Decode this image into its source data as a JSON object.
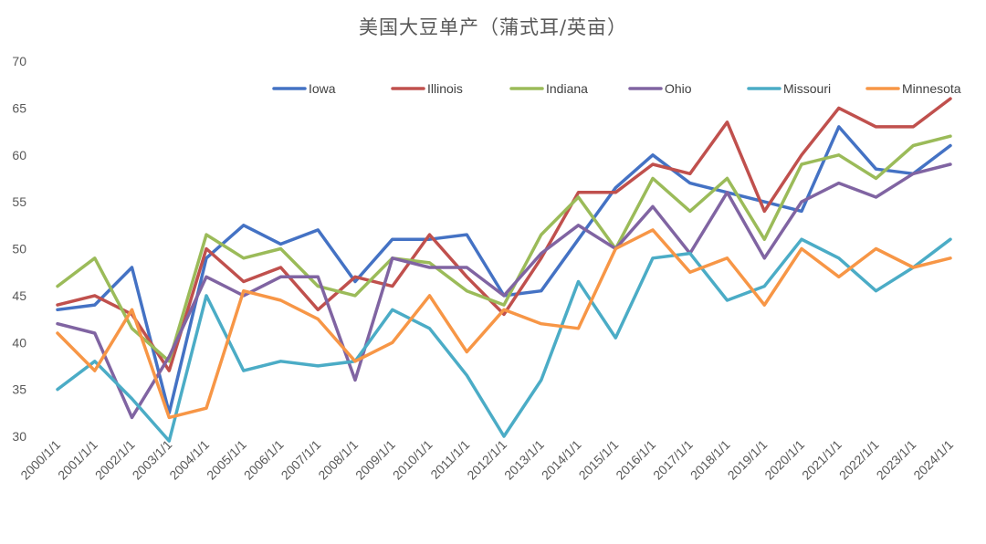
{
  "chart_data": {
    "type": "line",
    "title": "美国大豆单产（蒲式耳/英亩）",
    "xlabel": "",
    "ylabel": "",
    "ylim": [
      30,
      70
    ],
    "yticks": [
      30,
      35,
      40,
      45,
      50,
      55,
      60,
      65,
      70
    ],
    "grid": false,
    "legend_position": "top",
    "categories": [
      "2000/1/1",
      "2001/1/1",
      "2002/1/1",
      "2003/1/1",
      "2004/1/1",
      "2005/1/1",
      "2006/1/1",
      "2007/1/1",
      "2008/1/1",
      "2009/1/1",
      "2010/1/1",
      "2011/1/1",
      "2012/1/1",
      "2013/1/1",
      "2014/1/1",
      "2015/1/1",
      "2016/1/1",
      "2017/1/1",
      "2018/1/1",
      "2019/1/1",
      "2020/1/1",
      "2021/1/1",
      "2022/1/1",
      "2023/1/1",
      "2024/1/1"
    ],
    "series": [
      {
        "name": "Iowa",
        "color": "#4472C4",
        "values": [
          43.5,
          44,
          48,
          32.5,
          49,
          52.5,
          50.5,
          52,
          46.5,
          51,
          51,
          51.5,
          45,
          45.5,
          51,
          56.5,
          60,
          57,
          56,
          55,
          54,
          63,
          58.5,
          58,
          61
        ]
      },
      {
        "name": "Illinois",
        "color": "#C0504D",
        "values": [
          44,
          45,
          43,
          37,
          50,
          46.5,
          48,
          43.5,
          47,
          46,
          51.5,
          47,
          43,
          49,
          56,
          56,
          59,
          58,
          63.5,
          54,
          60,
          65,
          63,
          63,
          66
        ]
      },
      {
        "name": "Indiana",
        "color": "#9BBB59",
        "values": [
          46,
          49,
          41.5,
          38,
          51.5,
          49,
          50,
          46,
          45,
          49,
          48.5,
          45.5,
          44,
          51.5,
          55.5,
          50,
          57.5,
          54,
          57.5,
          51,
          59,
          60,
          57.5,
          61,
          62
        ]
      },
      {
        "name": "Ohio",
        "color": "#8064A2",
        "values": [
          42,
          41,
          32,
          38.5,
          47,
          45,
          47,
          47,
          36,
          49,
          48,
          48,
          45,
          49.5,
          52.5,
          50,
          54.5,
          49.5,
          56,
          49,
          55,
          57,
          55.5,
          58,
          59
        ]
      },
      {
        "name": "Missouri",
        "color": "#4BACC6",
        "values": [
          35,
          38,
          34,
          29.5,
          45,
          37,
          38,
          37.5,
          38,
          43.5,
          41.5,
          36.5,
          30,
          36,
          46.5,
          40.5,
          49,
          49.5,
          44.5,
          46,
          51,
          49,
          45.5,
          48,
          51
        ]
      },
      {
        "name": "Minnesota",
        "color": "#F79646",
        "values": [
          41,
          37,
          43.5,
          32,
          33,
          45.5,
          44.5,
          42.5,
          38,
          40,
          45,
          39,
          43.5,
          42,
          41.5,
          50,
          52,
          47.5,
          49,
          44,
          50,
          47,
          50,
          48,
          49
        ]
      }
    ]
  }
}
